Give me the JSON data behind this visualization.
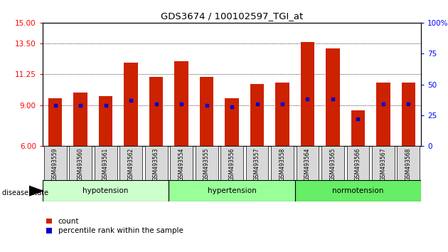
{
  "title": "GDS3674 / 100102597_TGI_at",
  "samples": [
    "GSM493559",
    "GSM493560",
    "GSM493561",
    "GSM493562",
    "GSM493563",
    "GSM493554",
    "GSM493555",
    "GSM493556",
    "GSM493557",
    "GSM493558",
    "GSM493564",
    "GSM493565",
    "GSM493566",
    "GSM493567",
    "GSM493568"
  ],
  "counts": [
    9.5,
    9.9,
    9.65,
    12.1,
    11.05,
    12.2,
    11.05,
    9.5,
    10.55,
    10.65,
    13.6,
    13.1,
    8.6,
    10.65,
    10.65
  ],
  "percentile_values": [
    33,
    33,
    33,
    37,
    34,
    34,
    33,
    32,
    34,
    34,
    38,
    38,
    22,
    34,
    34
  ],
  "ylim_left": [
    6,
    15
  ],
  "ylim_right": [
    0,
    100
  ],
  "yticks_left": [
    6,
    9,
    11.25,
    13.5,
    15
  ],
  "yticks_right": [
    0,
    25,
    50,
    75,
    100
  ],
  "groups": [
    {
      "label": "hypotension",
      "start": 0,
      "end": 5,
      "color": "#ccffcc"
    },
    {
      "label": "hypertension",
      "start": 5,
      "end": 10,
      "color": "#99ff99"
    },
    {
      "label": "normotension",
      "start": 10,
      "end": 15,
      "color": "#66ee66"
    }
  ],
  "bar_color": "#cc2200",
  "dot_color": "#0000cc",
  "bar_width": 0.55,
  "bg_color": "#ffffff"
}
